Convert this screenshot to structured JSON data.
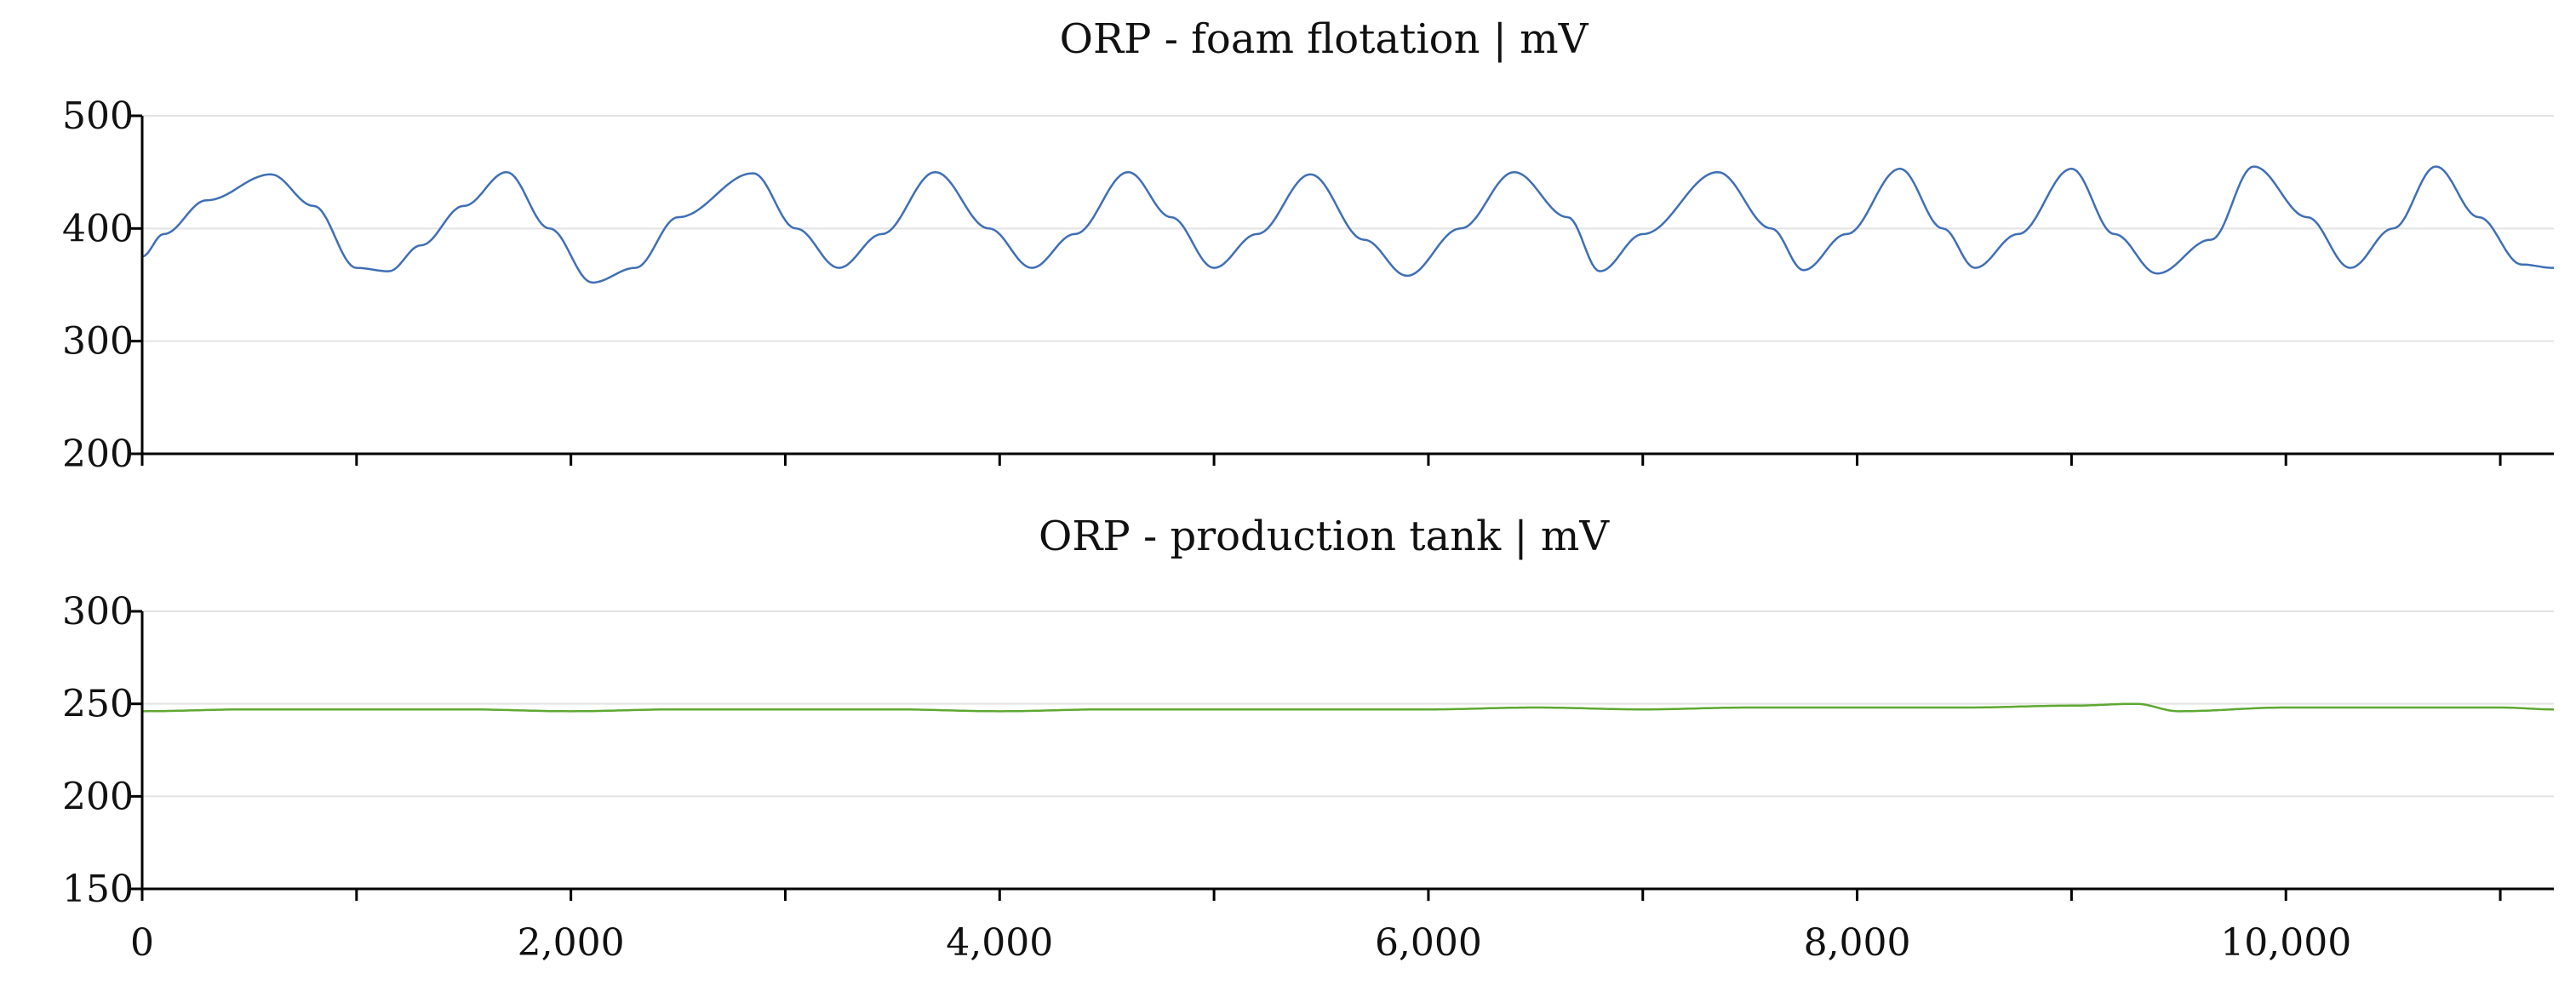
{
  "colors": {
    "foam": "#3f6fb5",
    "tank": "#5fa832",
    "axis": "#000000",
    "grid": "#e3e3e3"
  },
  "chart_data": [
    {
      "type": "area",
      "title": "ORP - foam flotation | mV",
      "xlim": [
        0,
        11250
      ],
      "ylim": [
        200,
        500
      ],
      "x_ticks": [
        0,
        1000,
        2000,
        3000,
        4000,
        5000,
        6000,
        7000,
        8000,
        9000,
        10000,
        11000
      ],
      "y_ticks": [
        200,
        300,
        400,
        500
      ],
      "y_tick_labels": [
        "200",
        "300",
        "400",
        "500"
      ],
      "grid": true,
      "series": [
        {
          "name": "ORP - foam flotation",
          "fill_base": 200,
          "envelope_x": [
            0,
            100,
            300,
            600,
            800,
            1000,
            1150,
            1300,
            1500,
            1700,
            1900,
            2100,
            2300,
            2500,
            2850,
            3050,
            3250,
            3450,
            3700,
            3950,
            4150,
            4350,
            4600,
            4800,
            5000,
            5200,
            5450,
            5700,
            5900,
            6150,
            6400,
            6650,
            6800,
            7000,
            7350,
            7600,
            7750,
            7950,
            8200,
            8400,
            8550,
            8750,
            9000,
            9200,
            9400,
            9650,
            9850,
            10100,
            10300,
            10500,
            10700,
            10900,
            11100,
            11250
          ],
          "envelope_y": [
            375,
            395,
            425,
            448,
            420,
            365,
            362,
            385,
            420,
            450,
            400,
            352,
            365,
            410,
            449,
            400,
            365,
            395,
            450,
            400,
            365,
            395,
            450,
            410,
            365,
            395,
            448,
            390,
            358,
            400,
            450,
            410,
            362,
            395,
            450,
            400,
            363,
            395,
            453,
            400,
            365,
            395,
            453,
            395,
            360,
            390,
            455,
            410,
            365,
            400,
            455,
            410,
            368,
            365
          ]
        }
      ]
    },
    {
      "type": "area",
      "title": "ORP - production tank | mV",
      "xlim": [
        0,
        11250
      ],
      "ylim": [
        150,
        300
      ],
      "x_ticks": [
        0,
        1000,
        2000,
        3000,
        4000,
        5000,
        6000,
        7000,
        8000,
        9000,
        10000,
        11000
      ],
      "x_tick_labels": [
        "0",
        "2,000",
        "4,000",
        "6,000",
        "8,000",
        "10,000"
      ],
      "x_tick_label_values": [
        0,
        2000,
        4000,
        6000,
        8000,
        10000
      ],
      "y_ticks": [
        150,
        200,
        250,
        300
      ],
      "y_tick_labels": [
        "150",
        "200",
        "250",
        "300"
      ],
      "grid": true,
      "series": [
        {
          "name": "ORP - production tank",
          "fill_base": 150,
          "envelope_x": [
            0,
            500,
            1000,
            1500,
            2000,
            2500,
            3000,
            3500,
            4000,
            4500,
            5000,
            5500,
            6000,
            6500,
            7000,
            7500,
            8000,
            8500,
            9000,
            9300,
            9500,
            10000,
            10500,
            11000,
            11250
          ],
          "envelope_y": [
            246,
            247,
            247,
            247,
            246,
            247,
            247,
            247,
            246,
            247,
            247,
            247,
            247,
            248,
            247,
            248,
            248,
            248,
            249,
            250,
            246,
            248,
            248,
            248,
            247
          ]
        }
      ]
    }
  ]
}
